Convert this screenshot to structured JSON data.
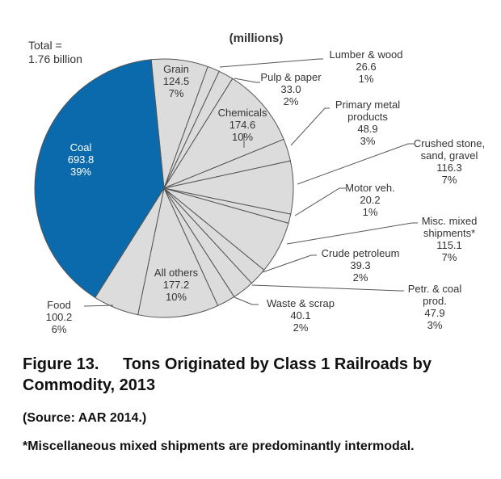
{
  "chart_data": {
    "type": "pie",
    "title": "(millions)",
    "total_label": [
      "Total =",
      "1.76 billion"
    ],
    "slices": [
      {
        "name": "Grain",
        "lines": [
          "Grain"
        ],
        "value": 124.5,
        "value_label": "124.5",
        "percent": "7%",
        "color": "#dcdcdc"
      },
      {
        "name": "Lumber & wood",
        "lines": [
          "Lumber & wood"
        ],
        "value": 26.6,
        "value_label": "26.6",
        "percent": "1%",
        "color": "#dcdcdc"
      },
      {
        "name": "Pulp & paper",
        "lines": [
          "Pulp & paper"
        ],
        "value": 33.0,
        "value_label": "33.0",
        "percent": "2%",
        "color": "#dcdcdc"
      },
      {
        "name": "Chemicals",
        "lines": [
          "Chemicals"
        ],
        "value": 174.6,
        "value_label": "174.6",
        "percent": "10%",
        "color": "#dcdcdc"
      },
      {
        "name": "Primary metal products",
        "lines": [
          "Primary metal",
          "products"
        ],
        "value": 48.9,
        "value_label": "48.9",
        "percent": "3%",
        "color": "#dcdcdc"
      },
      {
        "name": "Crushed stone, sand, gravel",
        "lines": [
          "Crushed stone,",
          "sand, gravel"
        ],
        "value": 116.3,
        "value_label": "116.3",
        "percent": "7%",
        "color": "#dcdcdc"
      },
      {
        "name": "Motor veh.",
        "lines": [
          "Motor veh."
        ],
        "value": 20.2,
        "value_label": "20.2",
        "percent": "1%",
        "color": "#dcdcdc"
      },
      {
        "name": "Misc. mixed shipments*",
        "lines": [
          "Misc. mixed",
          "shipments*"
        ],
        "value": 115.1,
        "value_label": "115.1",
        "percent": "7%",
        "color": "#dcdcdc"
      },
      {
        "name": "Crude petroleum",
        "lines": [
          "Crude petroleum"
        ],
        "value": 39.3,
        "value_label": "39.3",
        "percent": "2%",
        "color": "#dcdcdc"
      },
      {
        "name": "Petr. & coal prod.",
        "lines": [
          "Petr. & coal",
          "prod."
        ],
        "value": 47.9,
        "value_label": "47.9",
        "percent": "3%",
        "color": "#dcdcdc"
      },
      {
        "name": "Waste & scrap",
        "lines": [
          "Waste & scrap"
        ],
        "value": 40.1,
        "value_label": "40.1",
        "percent": "2%",
        "color": "#dcdcdc"
      },
      {
        "name": "All others",
        "lines": [
          "All others"
        ],
        "value": 177.2,
        "value_label": "177.2",
        "percent": "10%",
        "color": "#dcdcdc"
      },
      {
        "name": "Food",
        "lines": [
          "Food"
        ],
        "value": 100.2,
        "value_label": "100.2",
        "percent": "6%",
        "color": "#dcdcdc"
      },
      {
        "name": "Coal",
        "lines": [
          "Coal"
        ],
        "value": 693.8,
        "value_label": "693.8",
        "percent": "39%",
        "color": "#0b6aab"
      }
    ]
  },
  "caption": {
    "figure": "Figure 13.",
    "title_line1": "Tons Originated by Class 1 Railroads by",
    "title_line2": "Commodity, 2013",
    "source": "(Source: AAR 2014.)",
    "footnote": "*Miscellaneous mixed shipments are predominantly intermodal."
  }
}
